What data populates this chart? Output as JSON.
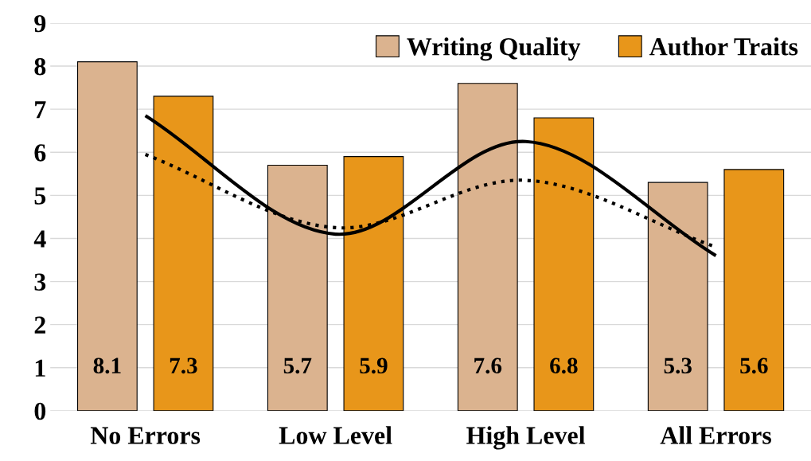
{
  "chart_data": {
    "type": "bar",
    "categories": [
      "No Errors",
      "Low Level",
      "High Level",
      "All Errors"
    ],
    "series": [
      {
        "name": "Writing Quality",
        "color": "#dbb38f",
        "values": [
          8.1,
          5.7,
          7.6,
          5.3
        ],
        "value_labels": [
          "8.1",
          "5.7",
          "7.6",
          "5.3"
        ]
      },
      {
        "name": "Author Traits",
        "color": "#e8961a",
        "values": [
          7.3,
          5.9,
          6.8,
          5.6
        ],
        "value_labels": [
          "7.3",
          "5.9",
          "6.8",
          "5.6"
        ]
      },
      {
        "type": "line",
        "color": "#000000",
        "line_style": "solid",
        "values": [
          6.85,
          4.1,
          6.25,
          3.6
        ]
      },
      {
        "type": "line",
        "color": "#000000",
        "line_style": "dotted",
        "values": [
          5.95,
          4.25,
          5.35,
          3.8
        ]
      }
    ],
    "ylim": [
      0,
      9
    ],
    "yticks": [
      0,
      1,
      2,
      3,
      4,
      5,
      6,
      7,
      8,
      9
    ],
    "grid": "y",
    "legend": "top right",
    "marker": "none"
  }
}
